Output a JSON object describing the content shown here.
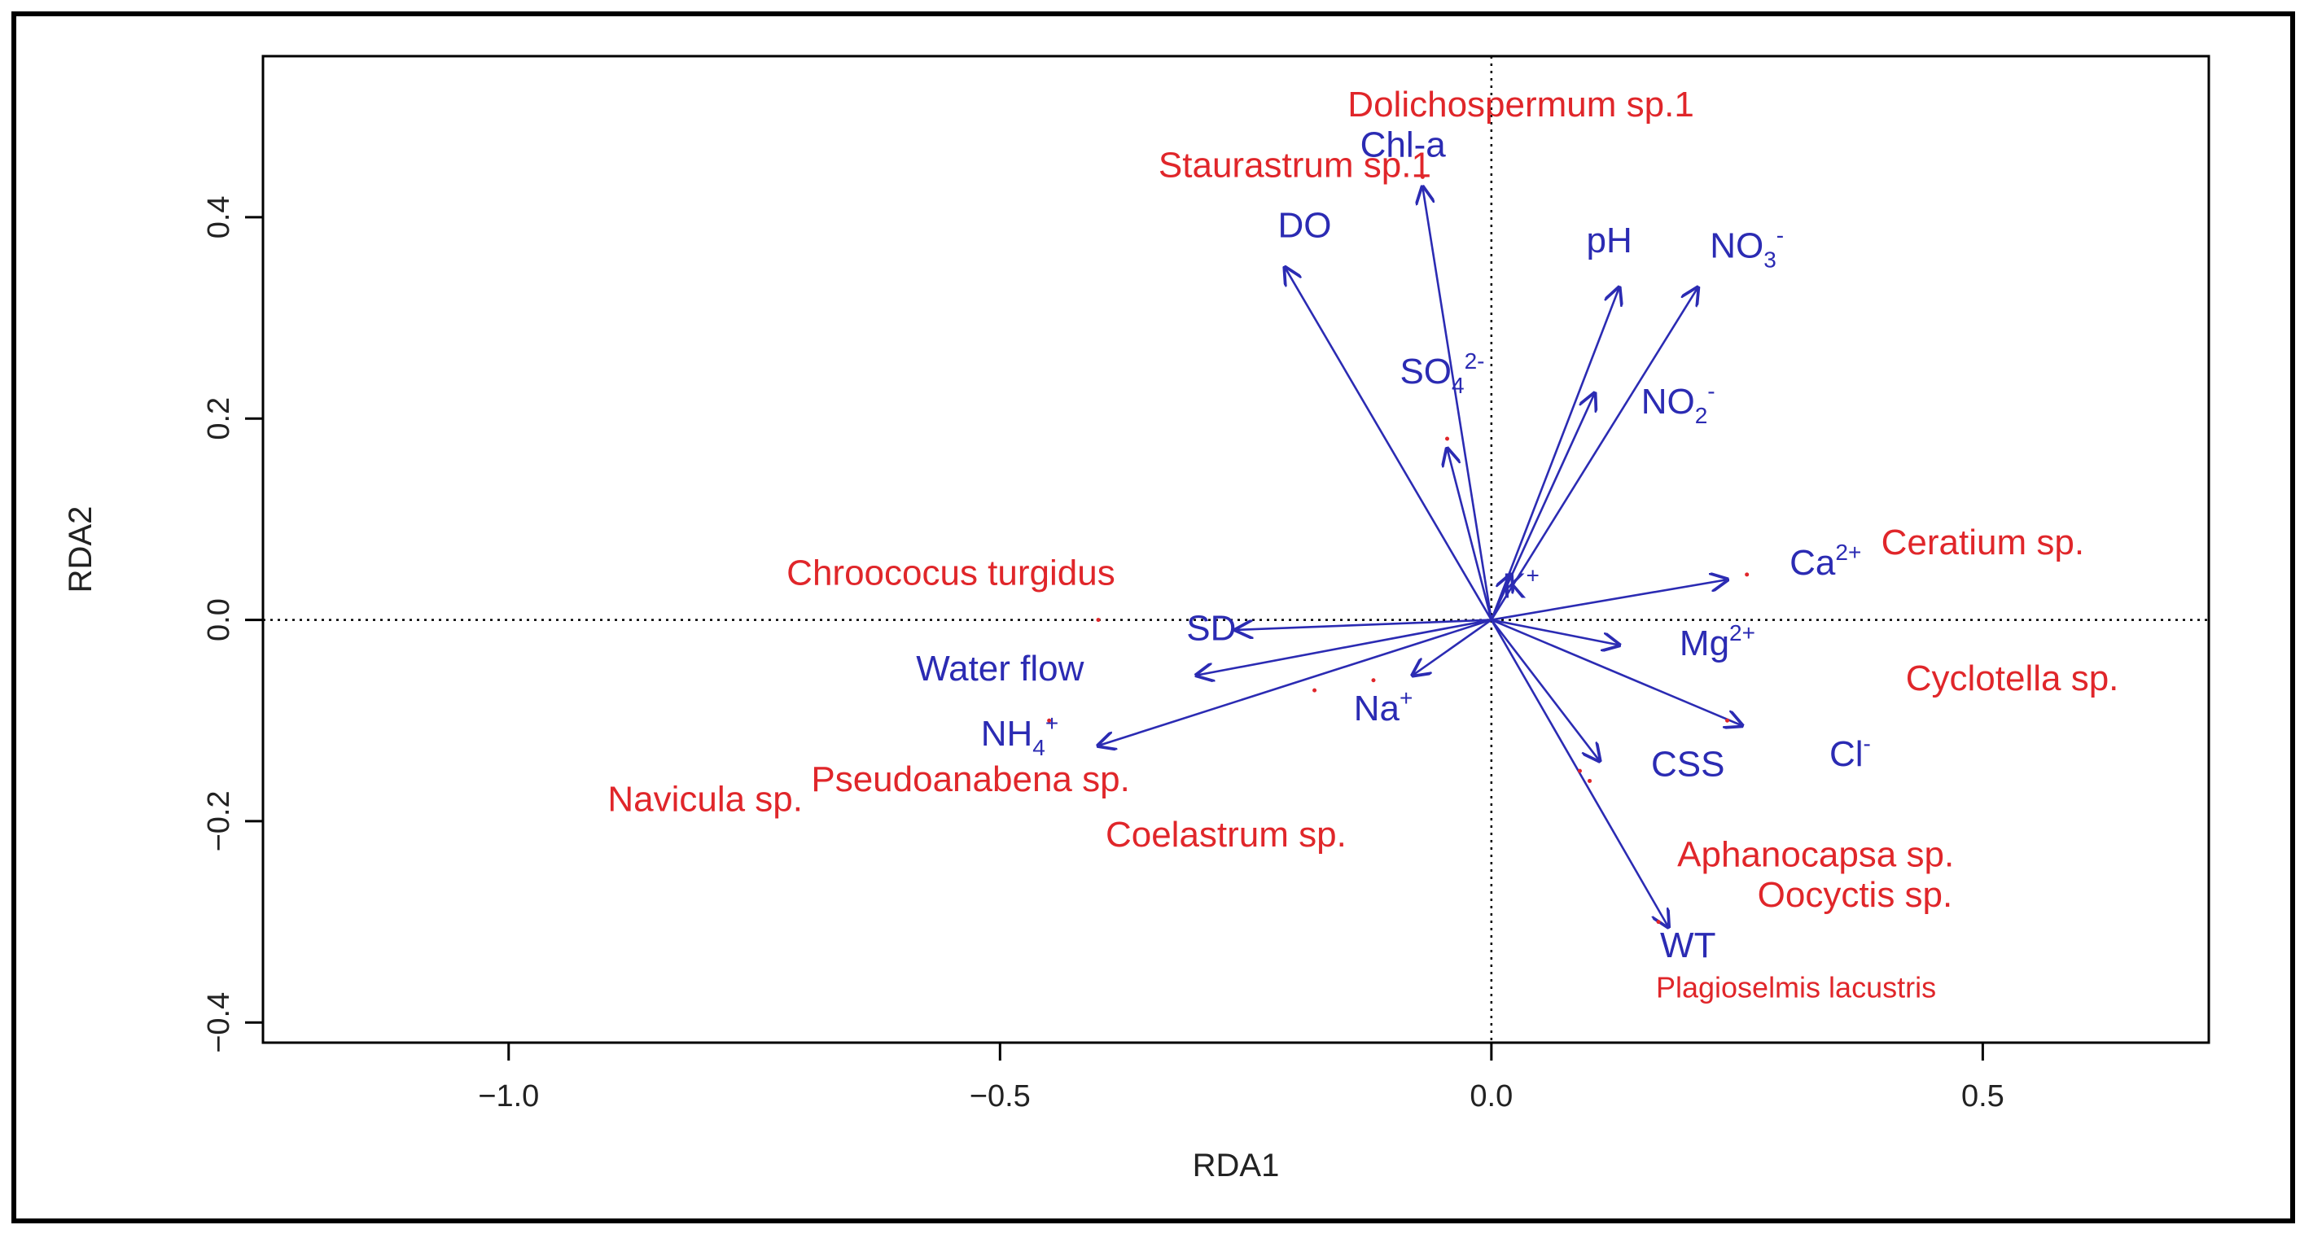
{
  "chart_data": {
    "type": "scatter",
    "subtype": "rda-biplot",
    "title": "",
    "xlabel": "RDA1",
    "ylabel": "RDA2",
    "xlim": [
      -1.25,
      0.73
    ],
    "ylim": [
      -0.42,
      0.56
    ],
    "xticks": [
      -1.0,
      -0.5,
      0.0,
      0.5
    ],
    "xtick_labels": [
      "−1.0",
      "−0.5",
      "0.0",
      "0.5"
    ],
    "yticks": [
      -0.4,
      -0.2,
      0.0,
      0.2,
      0.4
    ],
    "ytick_labels": [
      "−0.4",
      "−0.2",
      "0.0",
      "0.2",
      "0.4"
    ],
    "reference_lines": {
      "x": 0,
      "y": 0,
      "style": "dotted"
    },
    "colors": {
      "environment": "#2b2bb3",
      "species": "#e0262a",
      "axes": "#000000"
    },
    "environment_vectors": [
      {
        "name": "Chl-a",
        "base": "Chl-a",
        "sup": "",
        "sub": "",
        "x": -0.07,
        "y": 0.43,
        "lx": -0.09,
        "ly": 0.46
      },
      {
        "name": "DO",
        "base": "DO",
        "sup": "",
        "sub": "",
        "x": -0.21,
        "y": 0.35,
        "lx": -0.19,
        "ly": 0.38
      },
      {
        "name": "pH",
        "base": "pH",
        "sup": "",
        "sub": "",
        "x": 0.13,
        "y": 0.33,
        "lx": 0.12,
        "ly": 0.365
      },
      {
        "name": "NO3-",
        "base": "NO",
        "sub": "3",
        "sup": "-",
        "x": 0.21,
        "y": 0.33,
        "lx": 0.26,
        "ly": 0.36
      },
      {
        "name": "SO42-",
        "base": "SO",
        "sub": "4",
        "sup": "2-",
        "x": -0.045,
        "y": 0.17,
        "lx": -0.05,
        "ly": 0.235
      },
      {
        "name": "NO2-",
        "base": "NO",
        "sub": "2",
        "sup": "-",
        "x": 0.105,
        "y": 0.225,
        "lx": 0.19,
        "ly": 0.205
      },
      {
        "name": "K+",
        "base": "K",
        "sup": "+",
        "sub": "",
        "x": 0.02,
        "y": 0.045,
        "lx": 0.03,
        "ly": 0.022
      },
      {
        "name": "Ca2+",
        "base": "Ca",
        "sup": "2+",
        "sub": "",
        "x": 0.24,
        "y": 0.04,
        "lx": 0.34,
        "ly": 0.045
      },
      {
        "name": "Mg2+",
        "base": "Mg",
        "sup": "2+",
        "sub": "",
        "x": 0.13,
        "y": -0.025,
        "lx": 0.23,
        "ly": -0.035
      },
      {
        "name": "Cl-",
        "base": "Cl",
        "sup": "-",
        "sub": "",
        "x": 0.255,
        "y": -0.105,
        "lx": 0.365,
        "ly": -0.145
      },
      {
        "name": "CSS",
        "base": "CSS",
        "sup": "",
        "sub": "",
        "x": 0.11,
        "y": -0.14,
        "lx": 0.2,
        "ly": -0.155
      },
      {
        "name": "WT",
        "base": "WT",
        "sup": "",
        "sub": "",
        "x": 0.18,
        "y": -0.305,
        "lx": 0.2,
        "ly": -0.335
      },
      {
        "name": "Na+",
        "base": "Na",
        "sup": "+",
        "sub": "",
        "x": -0.08,
        "y": -0.055,
        "lx": -0.11,
        "ly": -0.1
      },
      {
        "name": "SD",
        "base": "SD",
        "sup": "",
        "sub": "",
        "x": -0.26,
        "y": -0.01,
        "lx": -0.285,
        "ly": -0.02
      },
      {
        "name": "Water flow",
        "base": "Water flow",
        "sup": "",
        "sub": "",
        "x": -0.3,
        "y": -0.055,
        "lx": -0.5,
        "ly": -0.06
      },
      {
        "name": "NH4+",
        "base": "NH",
        "sub": "4",
        "sup": "+",
        "x": -0.4,
        "y": -0.125,
        "lx": -0.48,
        "ly": -0.125
      }
    ],
    "species": [
      {
        "name": "Dolichospermum sp.1",
        "x": -0.07,
        "y": 0.44,
        "lx": 0.03,
        "ly": 0.5
      },
      {
        "name": "Staurastrum sp.1",
        "x": -0.045,
        "y": 0.18,
        "lx": -0.2,
        "ly": 0.44
      },
      {
        "name": "Chroococus turgidus",
        "x": -0.4,
        "y": 0.0,
        "lx": -0.55,
        "ly": 0.035
      },
      {
        "name": "Ceratium sp.",
        "x": 0.26,
        "y": 0.045,
        "lx": 0.5,
        "ly": 0.065
      },
      {
        "name": "Cyclotella sp.",
        "x": 0.24,
        "y": -0.1,
        "lx": 0.53,
        "ly": -0.07
      },
      {
        "name": "Navicula sp.",
        "x": -0.45,
        "y": -0.1,
        "lx": -0.8,
        "ly": -0.19
      },
      {
        "name": "Pseudoanabena sp.",
        "x": -0.18,
        "y": -0.07,
        "lx": -0.53,
        "ly": -0.17
      },
      {
        "name": "Coelastrum sp.",
        "x": -0.12,
        "y": -0.06,
        "lx": -0.27,
        "ly": -0.225
      },
      {
        "name": "Aphanocapsa sp.",
        "x": 0.1,
        "y": -0.16,
        "lx": 0.33,
        "ly": -0.245
      },
      {
        "name": "Oocyctis sp.",
        "x": 0.09,
        "y": -0.15,
        "lx": 0.37,
        "ly": -0.285
      },
      {
        "name": "Plagioselmis lacustris",
        "x": 0.17,
        "y": -0.3,
        "lx": 0.31,
        "ly": -0.375
      }
    ]
  }
}
